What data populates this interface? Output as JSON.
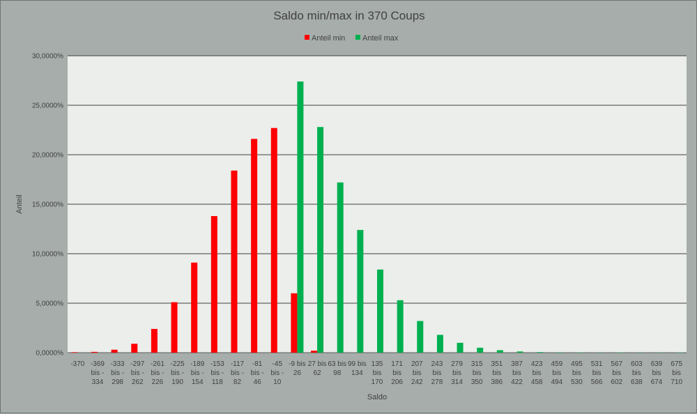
{
  "chart_data": {
    "type": "bar",
    "title": "Saldo min/max in 370 Coups",
    "xlabel": "Saldo",
    "ylabel": "Anteil",
    "ylim": [
      0,
      30
    ],
    "yticks": [
      "0,0000%",
      "5,0000%",
      "10,0000%",
      "15,0000%",
      "20,0000%",
      "25,0000%",
      "30,0000%"
    ],
    "grid": true,
    "legend_position": "top",
    "categories": [
      [
        "-370"
      ],
      [
        "-369",
        "bis -",
        "334"
      ],
      [
        "-333",
        "bis -",
        "298"
      ],
      [
        "-297",
        "bis -",
        "262"
      ],
      [
        "-261",
        "bis -",
        "226"
      ],
      [
        "-225",
        "bis -",
        "190"
      ],
      [
        "-189",
        "bis -",
        "154"
      ],
      [
        "-153",
        "bis -",
        "118"
      ],
      [
        "-117",
        "bis -",
        "82"
      ],
      [
        "-81",
        "bis -",
        "46"
      ],
      [
        "-45",
        "bis -",
        "10"
      ],
      [
        "-9 bis",
        "26"
      ],
      [
        "27 bis",
        "62"
      ],
      [
        "63 bis",
        "98"
      ],
      [
        "99 bis",
        "134"
      ],
      [
        "135",
        "bis",
        "170"
      ],
      [
        "171",
        "bis",
        "206"
      ],
      [
        "207",
        "bis",
        "242"
      ],
      [
        "243",
        "bis",
        "278"
      ],
      [
        "279",
        "bis",
        "314"
      ],
      [
        "315",
        "bis",
        "350"
      ],
      [
        "351",
        "bis",
        "386"
      ],
      [
        "387",
        "bis",
        "422"
      ],
      [
        "423",
        "bis",
        "458"
      ],
      [
        "459",
        "bis",
        "494"
      ],
      [
        "495",
        "bis",
        "530"
      ],
      [
        "531",
        "bis",
        "566"
      ],
      [
        "567",
        "bis",
        "602"
      ],
      [
        "603",
        "bis",
        "638"
      ],
      [
        "639",
        "bis",
        "674"
      ],
      [
        "675",
        "bis",
        "710"
      ]
    ],
    "series": [
      {
        "name": "Anteil min",
        "color": "#ff0000",
        "values": [
          0.05,
          0.08,
          0.3,
          0.9,
          2.4,
          5.1,
          9.1,
          13.8,
          18.4,
          21.6,
          22.7,
          6.0,
          0.2,
          0,
          0,
          0,
          0,
          0,
          0,
          0,
          0,
          0,
          0,
          0,
          0,
          0,
          0,
          0,
          0,
          0,
          0
        ]
      },
      {
        "name": "Anteil max",
        "color": "#00b050",
        "values": [
          0,
          0,
          0,
          0,
          0,
          0,
          0,
          0,
          0,
          0,
          0,
          27.4,
          22.8,
          17.2,
          12.4,
          8.4,
          5.3,
          3.2,
          1.8,
          1.0,
          0.5,
          0.25,
          0.12,
          0.06,
          0.04,
          0.03,
          0.02,
          0.03,
          0.02,
          0.02,
          0.03
        ]
      }
    ]
  }
}
